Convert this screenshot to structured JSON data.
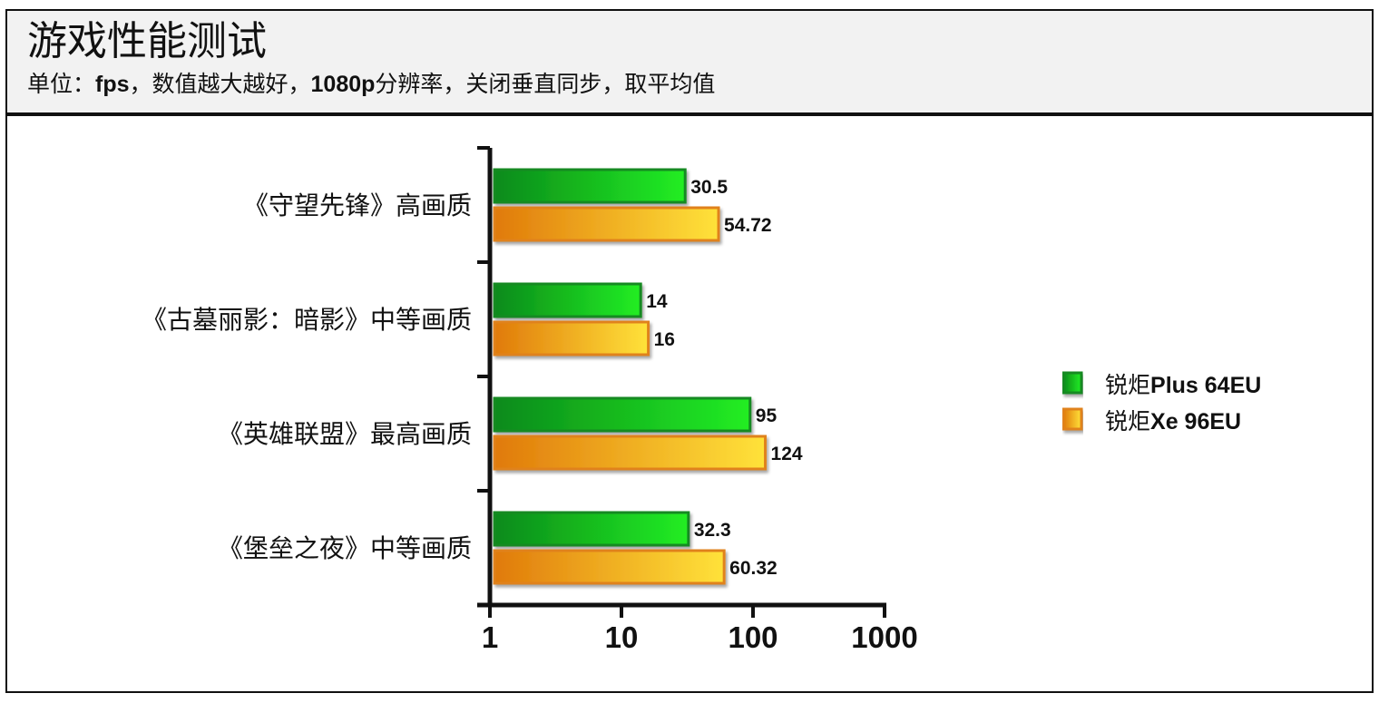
{
  "header": {
    "title": "游戏性能测试",
    "subtitle_parts": [
      "单位：",
      "fps",
      "，数值越大越好，",
      "1080p",
      "分辨率，关闭垂直同步，取平均值"
    ]
  },
  "colors": {
    "series_green_dark": "#0b8a1c",
    "series_green_light": "#22ee22",
    "series_green_border": "#138a22",
    "series_orange_dark": "#e07a0a",
    "series_orange_light": "#ffe23a",
    "series_orange_border": "#e0821a"
  },
  "chart_data": {
    "type": "bar",
    "orientation": "horizontal",
    "x_scale": "log",
    "xlim": [
      1,
      1000
    ],
    "x_ticks": [
      "1",
      "10",
      "100",
      "1000"
    ],
    "categories": [
      "《守望先锋》高画质",
      "《古墓丽影：暗影》中等画质",
      "《英雄联盟》最高画质",
      "《堡垒之夜》中等画质"
    ],
    "series": [
      {
        "name": "锐炬Plus 64EU",
        "name_parts": [
          "锐炬",
          "Plus 64EU"
        ],
        "values": [
          30.5,
          14,
          95,
          32.3
        ],
        "labels": [
          "30.5",
          "14",
          "95",
          "32.3"
        ]
      },
      {
        "name": "锐炬Xe 96EU",
        "name_parts": [
          "锐炬",
          "Xe 96EU"
        ],
        "values": [
          54.72,
          16,
          124,
          60.32
        ],
        "labels": [
          "54.72",
          "16",
          "124",
          "60.32"
        ]
      }
    ],
    "legend_position": "right",
    "grid": false
  }
}
